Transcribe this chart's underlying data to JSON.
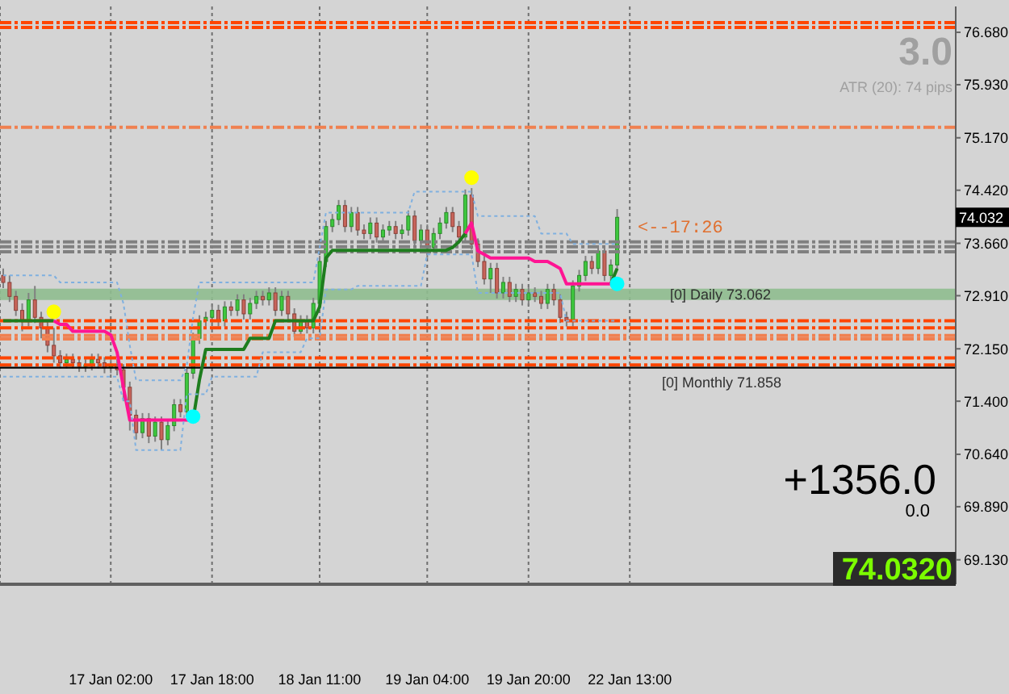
{
  "chart_data": {
    "type": "candlestick",
    "categories": [
      null,
      null,
      null,
      null,
      null,
      null,
      null,
      null,
      null,
      null,
      null,
      null,
      null,
      null,
      null,
      null,
      null,
      "17 Jan 02:00",
      null,
      null,
      null,
      null,
      null,
      null,
      null,
      null,
      null,
      null,
      null,
      null,
      null,
      null,
      null,
      "17 Jan 18:00",
      null,
      null,
      null,
      null,
      null,
      null,
      null,
      null,
      null,
      null,
      null,
      null,
      null,
      null,
      null,
      null,
      "18 Jan 11:00",
      null,
      null,
      null,
      null,
      null,
      null,
      null,
      null,
      null,
      null,
      null,
      null,
      null,
      null,
      null,
      null,
      "19 Jan 04:00",
      null,
      null,
      null,
      null,
      null,
      null,
      null,
      null,
      null,
      null,
      null,
      null,
      null,
      null,
      null,
      "19 Jan 20:00",
      null,
      null,
      null,
      null,
      null,
      null,
      null,
      null,
      null,
      null,
      null,
      null,
      null,
      null,
      null,
      "22 Jan 13:00",
      null,
      null,
      null,
      null,
      null,
      null,
      null,
      null,
      null,
      null,
      null,
      null,
      null,
      null,
      null,
      null,
      null,
      null,
      null,
      null,
      null,
      null,
      null,
      null,
      null,
      null,
      null,
      null,
      null,
      null,
      null,
      null,
      null,
      null,
      null,
      null,
      null,
      null,
      null,
      null,
      null,
      null,
      null,
      null,
      null,
      null,
      null,
      null,
      null,
      null,
      null
    ],
    "ohlc": [
      [
        73.2,
        73.3,
        73.02,
        73.1
      ],
      [
        73.1,
        73.2,
        72.82,
        72.9
      ],
      [
        72.9,
        72.98,
        72.62,
        72.7
      ],
      [
        72.7,
        72.8,
        72.4,
        72.55
      ],
      [
        72.55,
        72.95,
        72.47,
        72.85
      ],
      [
        72.85,
        73.05,
        72.52,
        72.6
      ],
      [
        72.6,
        72.68,
        72.3,
        72.45
      ],
      [
        72.45,
        72.55,
        72.1,
        72.2
      ],
      [
        72.2,
        72.45,
        71.95,
        72.05
      ],
      [
        72.05,
        72.13,
        71.87,
        71.95
      ],
      [
        71.95,
        72.08,
        71.87,
        72.0
      ],
      [
        72.0,
        72.08,
        71.87,
        71.95
      ],
      [
        71.95,
        72.03,
        71.82,
        71.9
      ],
      [
        71.9,
        72.0,
        71.82,
        71.92
      ],
      [
        71.92,
        72.08,
        71.84,
        72.0
      ],
      [
        72.0,
        72.08,
        71.87,
        71.95
      ],
      [
        71.95,
        72.03,
        71.8,
        71.88
      ],
      [
        71.88,
        72.0,
        71.8,
        71.92
      ],
      [
        71.92,
        72.0,
        71.77,
        71.85
      ],
      [
        71.85,
        71.93,
        71.4,
        71.6
      ],
      [
        71.6,
        71.68,
        70.98,
        71.2
      ],
      [
        71.2,
        71.28,
        70.85,
        70.95
      ],
      [
        70.95,
        71.23,
        70.87,
        71.15
      ],
      [
        71.15,
        71.23,
        70.8,
        70.9
      ],
      [
        70.9,
        71.18,
        70.82,
        71.1
      ],
      [
        71.1,
        71.18,
        70.7,
        70.85
      ],
      [
        70.85,
        71.13,
        70.77,
        71.05
      ],
      [
        71.05,
        71.43,
        70.97,
        71.35
      ],
      [
        71.35,
        71.43,
        71.17,
        71.25
      ],
      [
        71.25,
        71.88,
        71.17,
        71.8
      ],
      [
        71.8,
        72.38,
        71.72,
        72.3
      ],
      [
        72.3,
        72.63,
        72.22,
        72.55
      ],
      [
        72.55,
        72.68,
        72.47,
        72.6
      ],
      [
        72.6,
        72.78,
        72.52,
        72.7
      ],
      [
        72.7,
        72.78,
        72.47,
        72.55
      ],
      [
        72.55,
        72.83,
        72.47,
        72.75
      ],
      [
        72.75,
        72.83,
        72.62,
        72.7
      ],
      [
        72.7,
        72.93,
        72.62,
        72.85
      ],
      [
        72.85,
        72.93,
        72.57,
        72.65
      ],
      [
        72.65,
        72.88,
        72.57,
        72.8
      ],
      [
        72.8,
        72.98,
        72.72,
        72.9
      ],
      [
        72.9,
        72.98,
        72.77,
        72.85
      ],
      [
        72.85,
        73.03,
        72.77,
        72.95
      ],
      [
        72.95,
        73.03,
        72.62,
        72.7
      ],
      [
        72.7,
        72.98,
        72.62,
        72.9
      ],
      [
        72.9,
        72.98,
        72.57,
        72.65
      ],
      [
        72.65,
        72.73,
        72.32,
        72.4
      ],
      [
        72.4,
        72.63,
        72.32,
        72.55
      ],
      [
        72.55,
        72.63,
        72.37,
        72.45
      ],
      [
        72.45,
        72.88,
        72.37,
        72.8
      ],
      [
        72.8,
        73.48,
        72.72,
        73.4
      ],
      [
        73.4,
        73.98,
        73.32,
        73.9
      ],
      [
        73.9,
        74.08,
        73.82,
        74.0
      ],
      [
        74.0,
        74.28,
        73.92,
        74.2
      ],
      [
        74.2,
        74.28,
        73.82,
        73.9
      ],
      [
        73.9,
        74.18,
        73.82,
        74.1
      ],
      [
        74.1,
        74.18,
        73.77,
        73.85
      ],
      [
        73.85,
        73.93,
        73.72,
        73.8
      ],
      [
        73.8,
        74.03,
        73.72,
        73.95
      ],
      [
        73.95,
        74.03,
        73.67,
        73.75
      ],
      [
        73.75,
        73.93,
        73.67,
        73.85
      ],
      [
        73.85,
        73.98,
        73.77,
        73.9
      ],
      [
        73.9,
        73.98,
        73.72,
        73.8
      ],
      [
        73.8,
        73.93,
        73.72,
        73.85
      ],
      [
        73.85,
        74.13,
        73.77,
        74.05
      ],
      [
        74.05,
        74.13,
        73.62,
        73.7
      ],
      [
        73.7,
        73.93,
        73.62,
        73.85
      ],
      [
        73.85,
        73.93,
        73.45,
        73.6
      ],
      [
        73.6,
        73.88,
        73.52,
        73.8
      ],
      [
        73.8,
        74.03,
        73.72,
        73.95
      ],
      [
        73.95,
        74.18,
        73.87,
        74.1
      ],
      [
        74.1,
        74.18,
        73.82,
        73.9
      ],
      [
        73.9,
        73.98,
        73.67,
        73.75
      ],
      [
        73.75,
        74.43,
        73.67,
        74.35
      ],
      [
        74.35,
        74.45,
        73.57,
        73.65
      ],
      [
        73.65,
        73.73,
        73.32,
        73.4
      ],
      [
        73.4,
        73.48,
        73.07,
        73.15
      ],
      [
        73.15,
        73.38,
        72.95,
        73.3
      ],
      [
        73.3,
        73.38,
        72.87,
        72.95
      ],
      [
        72.95,
        73.18,
        72.87,
        73.1
      ],
      [
        73.1,
        73.18,
        72.82,
        72.9
      ],
      [
        72.9,
        73.08,
        72.82,
        73.0
      ],
      [
        73.0,
        73.08,
        72.77,
        72.85
      ],
      [
        72.85,
        73.03,
        72.77,
        72.95
      ],
      [
        72.95,
        73.03,
        72.82,
        72.9
      ],
      [
        72.9,
        72.98,
        72.72,
        72.8
      ],
      [
        72.8,
        73.08,
        72.72,
        73.0
      ],
      [
        73.0,
        73.08,
        72.77,
        72.85
      ],
      [
        72.85,
        72.93,
        72.52,
        72.6
      ],
      [
        72.6,
        72.68,
        72.47,
        72.55
      ],
      [
        72.55,
        73.13,
        72.47,
        73.05
      ],
      [
        73.05,
        73.28,
        72.97,
        73.2
      ],
      [
        73.2,
        73.48,
        73.12,
        73.4
      ],
      [
        73.4,
        73.48,
        73.22,
        73.3
      ],
      [
        73.3,
        73.63,
        73.22,
        73.55
      ],
      [
        73.55,
        73.63,
        73.12,
        73.2
      ],
      [
        73.2,
        73.43,
        73.12,
        73.35
      ],
      [
        73.35,
        74.15,
        73.27,
        74.032
      ],
      null,
      null,
      null,
      null,
      null,
      null,
      null,
      null,
      null,
      null,
      null,
      null,
      null,
      null,
      null,
      null,
      null,
      null,
      null,
      null,
      null,
      null,
      null,
      null,
      null,
      null,
      null,
      null,
      null,
      null,
      null,
      null,
      null,
      null,
      null,
      null,
      null,
      null,
      null,
      null,
      null,
      null,
      null,
      null,
      null,
      null,
      null,
      null,
      null,
      null,
      null,
      null,
      null
    ],
    "series": [
      {
        "type": "line",
        "color": "#1e7d1e",
        "values": [
          72.55,
          72.55,
          72.55,
          72.55,
          72.55,
          72.55,
          72.55,
          72.55,
          72.55,
          null,
          null,
          null,
          null,
          null,
          null,
          null,
          null,
          null,
          null,
          null,
          null,
          null,
          null,
          null,
          null,
          null,
          null,
          null,
          null,
          null,
          71.13,
          71.7,
          72.14,
          72.14,
          72.14,
          72.14,
          72.14,
          72.14,
          72.14,
          72.3,
          72.3,
          72.3,
          72.3,
          72.55,
          72.55,
          72.55,
          72.55,
          72.55,
          72.55,
          72.55,
          72.75,
          73.45,
          73.56,
          73.56,
          73.56,
          73.56,
          73.56,
          73.56,
          73.56,
          73.56,
          73.56,
          73.56,
          73.56,
          73.56,
          73.56,
          73.56,
          73.56,
          73.56,
          73.56,
          73.56,
          73.56,
          73.6,
          73.68,
          73.8,
          null,
          null,
          null,
          null,
          null,
          null,
          null,
          null,
          null,
          null,
          null,
          null,
          null,
          null,
          null,
          null,
          null,
          null,
          null,
          null,
          null,
          null,
          73.08,
          73.3,
          null,
          null,
          null,
          null,
          null,
          null,
          null,
          null,
          null,
          null,
          null,
          null,
          null,
          null,
          null,
          null,
          null,
          null,
          null,
          null,
          null,
          null,
          null,
          null,
          null,
          null,
          null,
          null,
          null,
          null,
          null,
          null,
          null,
          null,
          null,
          null,
          null,
          null,
          null,
          null,
          null,
          null,
          null,
          null,
          null,
          null,
          null,
          null,
          null,
          null,
          null,
          null,
          null
        ]
      },
      {
        "type": "line",
        "color": "#ff1493",
        "values": [
          null,
          null,
          null,
          null,
          null,
          null,
          null,
          null,
          72.55,
          72.5,
          72.5,
          72.4,
          72.4,
          72.4,
          72.4,
          72.4,
          72.4,
          72.35,
          72.1,
          71.6,
          71.13,
          71.13,
          71.13,
          71.13,
          71.13,
          71.13,
          71.13,
          71.13,
          71.13,
          71.13,
          71.13,
          null,
          null,
          null,
          null,
          null,
          null,
          null,
          null,
          null,
          null,
          null,
          null,
          null,
          null,
          null,
          null,
          null,
          null,
          null,
          null,
          null,
          null,
          null,
          null,
          null,
          null,
          null,
          null,
          null,
          null,
          null,
          null,
          null,
          null,
          null,
          null,
          null,
          null,
          null,
          null,
          null,
          null,
          73.8,
          73.95,
          73.55,
          73.5,
          73.45,
          73.45,
          73.45,
          73.45,
          73.45,
          73.45,
          73.45,
          73.4,
          73.4,
          73.4,
          73.35,
          73.3,
          73.08,
          73.08,
          73.08,
          73.08,
          73.08,
          73.08,
          73.08,
          73.08,
          null,
          null,
          null,
          null,
          null,
          null,
          null,
          null,
          null,
          null,
          null,
          null,
          null,
          null,
          null,
          null,
          null,
          null,
          null,
          null,
          null,
          null,
          null,
          null,
          null,
          null,
          null,
          null,
          null,
          null,
          null,
          null,
          null,
          null,
          null,
          null,
          null,
          null,
          null,
          null,
          null,
          null,
          null,
          null,
          null,
          null,
          null,
          null,
          null,
          null,
          null,
          null,
          null,
          null
        ]
      },
      {
        "type": "line",
        "color": "#7fb0e0",
        "line_style": "dotted",
        "values": [
          73.2,
          73.2,
          73.2,
          73.2,
          73.2,
          73.2,
          73.2,
          73.2,
          73.2,
          73.1,
          73.1,
          73.1,
          73.1,
          73.1,
          73.1,
          73.1,
          73.1,
          73.1,
          73.1,
          72.8,
          72.2,
          71.7,
          71.7,
          71.7,
          71.7,
          71.7,
          71.7,
          71.7,
          71.7,
          71.9,
          72.6,
          73.1,
          73.1,
          73.1,
          73.1,
          73.1,
          73.1,
          73.1,
          73.1,
          73.1,
          73.1,
          73.1,
          73.1,
          73.1,
          73.1,
          73.1,
          73.1,
          73.1,
          73.1,
          73.1,
          73.6,
          74.1,
          74.1,
          74.1,
          74.1,
          74.1,
          74.1,
          74.1,
          74.1,
          74.1,
          74.1,
          74.1,
          74.1,
          74.1,
          74.1,
          74.4,
          74.4,
          74.4,
          74.4,
          74.4,
          74.4,
          74.4,
          74.4,
          74.4,
          74.4,
          74.05,
          74.05,
          74.05,
          74.05,
          74.05,
          74.05,
          74.05,
          74.05,
          74.05,
          74.05,
          73.8,
          73.8,
          73.8,
          73.8,
          73.8,
          73.65,
          73.65,
          73.65,
          73.65,
          73.65,
          73.65,
          73.65,
          73.65,
          null,
          null,
          null,
          null,
          null,
          null,
          null,
          null,
          null,
          null,
          null,
          null,
          null,
          null,
          null,
          null,
          null,
          null,
          null,
          null,
          null,
          null,
          null,
          null,
          null,
          null,
          null,
          null,
          null,
          null,
          null,
          null,
          null,
          null,
          null,
          null,
          null,
          null,
          null,
          null,
          null,
          null,
          null,
          null,
          null,
          null,
          null,
          null,
          null,
          null,
          null,
          null,
          null
        ]
      },
      {
        "type": "line",
        "color": "#7fb0e0",
        "line_style": "dotted",
        "values": [
          71.75,
          71.75,
          71.75,
          71.75,
          71.75,
          71.75,
          71.75,
          71.75,
          71.75,
          71.75,
          71.75,
          71.75,
          71.75,
          71.75,
          71.75,
          71.75,
          71.75,
          71.75,
          71.75,
          71.4,
          71.4,
          70.7,
          70.7,
          70.7,
          70.7,
          70.7,
          70.7,
          70.7,
          70.7,
          71.5,
          71.5,
          71.5,
          71.5,
          71.75,
          71.75,
          71.75,
          71.75,
          71.75,
          71.75,
          71.75,
          71.75,
          72.1,
          72.1,
          72.1,
          72.1,
          72.1,
          72.1,
          72.1,
          72.3,
          72.3,
          72.3,
          73.0,
          73.0,
          73.0,
          73.0,
          73.0,
          73.05,
          73.05,
          73.05,
          73.05,
          73.05,
          73.05,
          73.05,
          73.05,
          73.05,
          73.05,
          73.05,
          73.5,
          73.5,
          73.5,
          73.5,
          73.5,
          73.5,
          73.5,
          73.5,
          72.95,
          72.95,
          72.95,
          72.95,
          72.95,
          72.95,
          72.95,
          72.95,
          72.95,
          72.95,
          72.95,
          72.95,
          72.95,
          72.95,
          72.55,
          72.55,
          72.55,
          72.55,
          72.55,
          72.55,
          72.55,
          72.55,
          72.55,
          null,
          null,
          null,
          null,
          null,
          null,
          null,
          null,
          null,
          null,
          null,
          null,
          null,
          null,
          null,
          null,
          null,
          null,
          null,
          null,
          null,
          null,
          null,
          null,
          null,
          null,
          null,
          null,
          null,
          null,
          null,
          null,
          null,
          null,
          null,
          null,
          null,
          null,
          null,
          null,
          null,
          null,
          null,
          null,
          null,
          null,
          null,
          null,
          null,
          null,
          null,
          null,
          null
        ]
      },
      {
        "type": "scatter",
        "color": "#ffff00",
        "marker": "circle",
        "values": [
          null,
          null,
          null,
          null,
          null,
          null,
          null,
          null,
          72.68,
          null,
          null,
          null,
          null,
          null,
          null,
          null,
          null,
          null,
          null,
          null,
          null,
          null,
          null,
          null,
          null,
          null,
          null,
          null,
          null,
          null,
          null,
          null,
          null,
          null,
          null,
          null,
          null,
          null,
          null,
          null,
          null,
          null,
          null,
          null,
          null,
          null,
          null,
          null,
          null,
          null,
          null,
          null,
          null,
          null,
          null,
          null,
          null,
          null,
          null,
          null,
          null,
          null,
          null,
          null,
          null,
          null,
          null,
          null,
          null,
          null,
          null,
          null,
          null,
          null,
          74.6,
          null,
          null,
          null,
          null,
          null,
          null,
          null,
          null,
          null,
          null,
          null,
          null,
          null,
          null,
          null,
          null,
          null,
          null,
          null,
          null,
          null,
          null,
          null,
          null,
          null,
          null,
          null,
          null,
          null,
          null,
          null,
          null,
          null,
          null,
          null,
          null,
          null,
          null,
          null,
          null,
          null,
          null,
          null,
          null,
          null,
          null,
          null,
          null,
          null,
          null,
          null,
          null,
          null,
          null,
          null,
          null,
          null,
          null,
          null,
          null,
          null,
          null,
          null,
          null,
          null,
          null,
          null,
          null,
          null,
          null,
          null,
          null,
          null,
          null,
          null,
          null
        ]
      },
      {
        "type": "scatter",
        "color": "#00ffff",
        "marker": "circle",
        "values": [
          null,
          null,
          null,
          null,
          null,
          null,
          null,
          null,
          null,
          null,
          null,
          null,
          null,
          null,
          null,
          null,
          null,
          null,
          null,
          null,
          null,
          null,
          null,
          null,
          null,
          null,
          null,
          null,
          null,
          null,
          71.18,
          null,
          null,
          null,
          null,
          null,
          null,
          null,
          null,
          null,
          null,
          null,
          null,
          null,
          null,
          null,
          null,
          null,
          null,
          null,
          null,
          null,
          null,
          null,
          null,
          null,
          null,
          null,
          null,
          null,
          null,
          null,
          null,
          null,
          null,
          null,
          null,
          null,
          null,
          null,
          null,
          null,
          null,
          null,
          null,
          null,
          null,
          null,
          null,
          null,
          null,
          null,
          null,
          null,
          null,
          null,
          null,
          null,
          null,
          null,
          null,
          null,
          null,
          null,
          null,
          null,
          null,
          73.08,
          null,
          null,
          null,
          null,
          null,
          null,
          null,
          null,
          null,
          null,
          null,
          null,
          null,
          null,
          null,
          null,
          null,
          null,
          null,
          null,
          null,
          null,
          null,
          null,
          null,
          null,
          null,
          null,
          null,
          null,
          null,
          null,
          null,
          null,
          null,
          null,
          null,
          null,
          null,
          null,
          null,
          null,
          null,
          null,
          null,
          null,
          null,
          null,
          null,
          null,
          null,
          null,
          null
        ]
      }
    ],
    "ref_lines": [
      {
        "axis": "y",
        "value": 76.82,
        "color": "#ff4500",
        "line_style": "dashed"
      },
      {
        "axis": "y",
        "value": 76.75,
        "color": "#ff4500",
        "line_style": "dashed"
      },
      {
        "axis": "y",
        "value": 75.32,
        "color": "#f08050",
        "line_style": "dashed"
      },
      {
        "axis": "y",
        "value": 73.68,
        "color": "#808080",
        "line_style": "dashed"
      },
      {
        "axis": "y",
        "value": 73.61,
        "color": "#808080",
        "line_style": "dashed"
      },
      {
        "axis": "y",
        "value": 73.54,
        "color": "#808080",
        "line_style": "dashed"
      },
      {
        "axis": "y",
        "value": 72.55,
        "color": "#ff4500",
        "line_style": "dashed"
      },
      {
        "axis": "y",
        "value": 72.45,
        "color": "#ff4500",
        "line_style": "dashed"
      },
      {
        "axis": "y",
        "value": 72.34,
        "color": "#f08050",
        "line_style": "dashed"
      },
      {
        "axis": "y",
        "value": 72.29,
        "color": "#f08050",
        "line_style": "dashed"
      },
      {
        "axis": "y",
        "value": 72.02,
        "color": "#ff4500",
        "line_style": "dashed"
      },
      {
        "axis": "y",
        "value": 71.92,
        "color": "#ff4500",
        "line_style": "dashed"
      },
      {
        "axis": "y",
        "value": 71.88,
        "color": "#000000",
        "line_style": "solid",
        "label": "[0] Monthly 71.858"
      }
    ],
    "bands": [
      {
        "axis": "y",
        "from": 72.85,
        "to": 73.01,
        "color": "#8fbc8f",
        "label": "[0] Daily 73.062"
      }
    ],
    "annotations": [
      "3.0",
      "ATR (20): 74 pips",
      "<--17:26",
      "+1356.0",
      "0.0",
      "74.0320",
      {
        "text": "74.032",
        "y": 74.032
      }
    ],
    "ylim": [
      68.78,
      77.05
    ],
    "yticks": [
      {
        "value": 76.68,
        "label": "76.680"
      },
      {
        "value": 75.93,
        "label": "75.930"
      },
      {
        "value": 75.17,
        "label": "75.170"
      },
      {
        "value": 74.42,
        "label": "74.420"
      },
      {
        "value": 73.66,
        "label": "73.660"
      },
      {
        "value": 72.91,
        "label": "72.910"
      },
      {
        "value": 72.15,
        "label": "72.150"
      },
      {
        "value": 71.4,
        "label": "71.400"
      },
      {
        "value": 70.64,
        "label": "70.640"
      },
      {
        "value": 69.89,
        "label": "69.890"
      },
      {
        "value": 69.13,
        "label": "69.130"
      }
    ],
    "grid": "x"
  }
}
